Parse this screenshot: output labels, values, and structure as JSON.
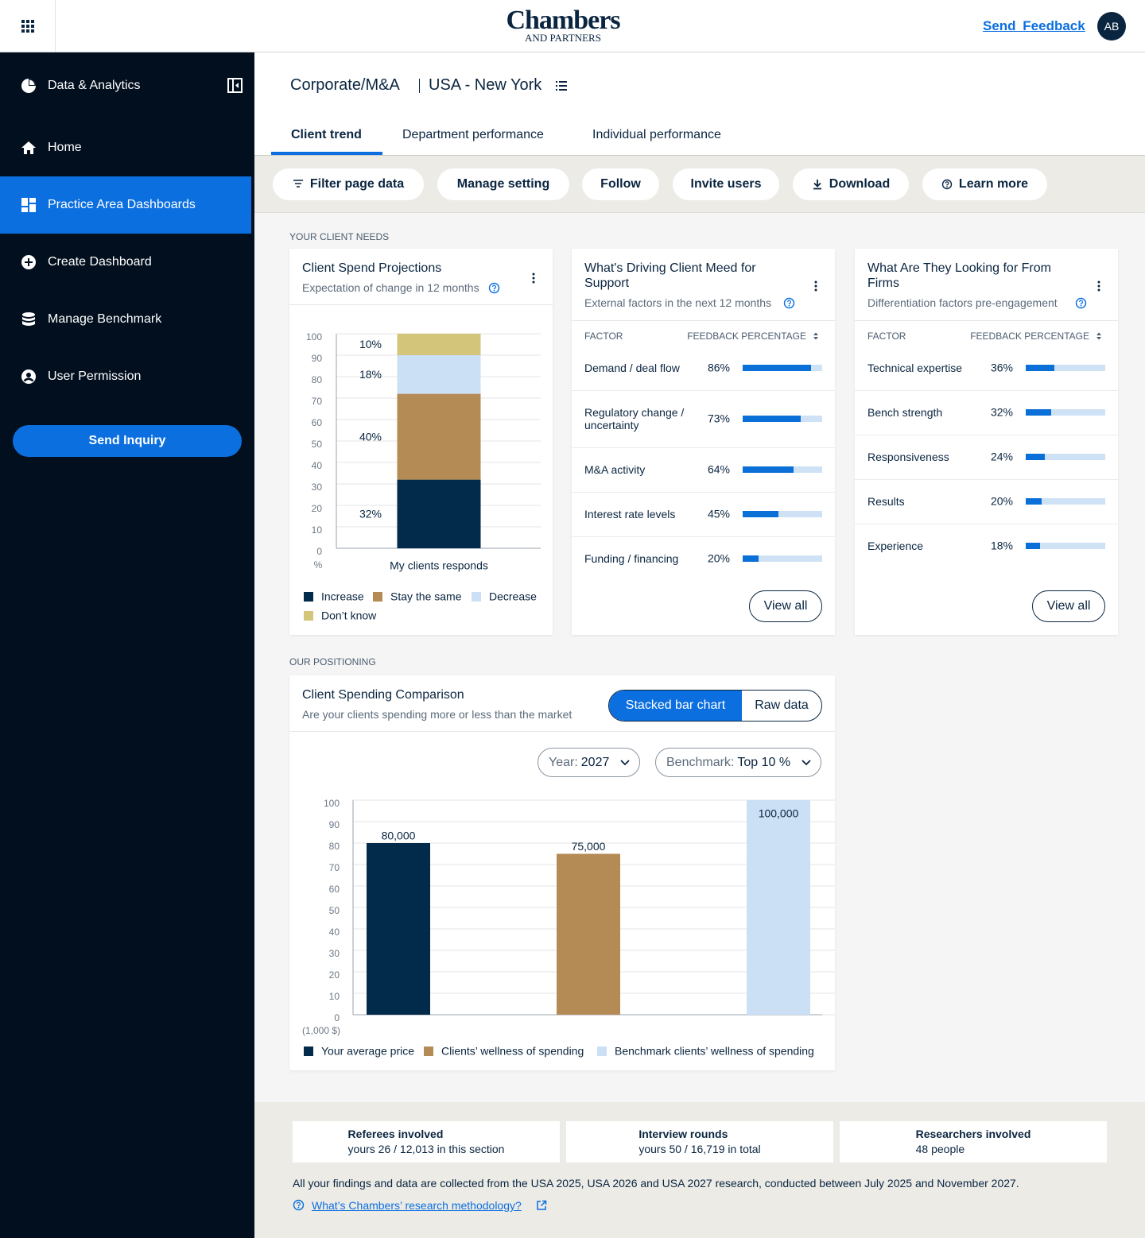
{
  "header": {
    "logo": "Chambers",
    "logo_sub": "AND PARTNERS",
    "feedback": "Send Feedback",
    "avatar": "AB"
  },
  "sidebar": {
    "items": [
      "Data & Analytics",
      "Home",
      "Practice Area Dashboards",
      "Create Dashboard",
      "Manage Benchmark",
      "User Permission"
    ],
    "button": "Send Inquiry"
  },
  "breadcrumb": [
    "Corporate/M&A",
    "USA - New York"
  ],
  "tabs": [
    "Client trend",
    "Department performance",
    "Individual performance"
  ],
  "toolbar": [
    "Filter page data",
    "Manage setting",
    "Follow",
    "Invite users",
    "Download",
    "Learn more"
  ],
  "sections": [
    "YOUR CLIENT NEEDS",
    "OUR POSITIONING"
  ],
  "chart_data": [
    {
      "type": "stacked_bar",
      "title": "Client Spend Projections",
      "subtitle": "Expectation of change in 12 months",
      "categories": [
        "My clients responds"
      ],
      "series": [
        {
          "name": "Increase",
          "color": "#022a4a",
          "values": [
            32
          ],
          "value_labels": [
            "32%"
          ]
        },
        {
          "name": "Stay the same",
          "color": "#b58b55",
          "values": [
            40
          ],
          "value_labels": [
            "40%"
          ]
        },
        {
          "name": "Decrease",
          "color": "#cbe0f5",
          "values": [
            18
          ],
          "value_labels": [
            "18%"
          ]
        },
        {
          "name": "Don’t know",
          "color": "#d3c67a",
          "values": [
            10
          ],
          "value_labels": [
            "10%"
          ]
        }
      ],
      "ylim": [
        0,
        100
      ],
      "yticks": [
        0,
        10,
        20,
        30,
        40,
        50,
        60,
        70,
        80,
        90,
        100
      ],
      "y_unit": "%",
      "grid": true
    },
    {
      "type": "bar",
      "title": "Client Spending Comparison",
      "subtitle": "Are your clients spending more or less than the market",
      "view_options": [
        "Stacked bar chart",
        "Raw data"
      ],
      "filters": [
        {
          "label": "Year:",
          "value": "2027"
        },
        {
          "label": "Benchmark:",
          "value": "Top 10 %"
        }
      ],
      "series": [
        {
          "name": "Your average price",
          "color": "#022a4a",
          "values": [
            80
          ],
          "value_labels": [
            "80,000"
          ]
        },
        {
          "name": "Clients’ wellness of spending",
          "color": "#b58b55",
          "values": [
            75
          ],
          "value_labels": [
            "75,000"
          ]
        },
        {
          "name": "Benchmark clients’ wellness of spending",
          "color": "#cbe0f5",
          "values": [
            100
          ],
          "value_labels": [
            "100,000"
          ]
        }
      ],
      "ylim": [
        0,
        100
      ],
      "yticks": [
        0,
        10,
        20,
        30,
        40,
        50,
        60,
        70,
        80,
        90,
        100
      ],
      "y_unit": "(1,000 $)",
      "grid": true
    }
  ],
  "cards": [
    {
      "title": "What's Driving Client Meed for Support",
      "subtitle": "External factors in the next 12 months",
      "columns": [
        "FACTOR",
        "FEEDBACK PERCENTAGE"
      ],
      "factors": [
        "Demand / deal flow",
        "Regulatory change / uncertainty",
        "M&A activity",
        "Interest rate levels",
        "Funding / financing"
      ],
      "values": [
        86,
        73,
        64,
        45,
        20
      ],
      "value_labels": [
        "86%",
        "73%",
        "64%",
        "45%",
        "20%"
      ],
      "xlim": [
        0,
        100
      ],
      "button": "View all"
    },
    {
      "title": "What Are They Looking for From Firms",
      "subtitle": "Differentiation factors pre-engagement",
      "columns": [
        "FACTOR",
        "FEEDBACK PERCENTAGE"
      ],
      "factors": [
        "Technical expertise",
        "Bench strength",
        "Responsiveness",
        "Results",
        "Experience"
      ],
      "values": [
        36,
        32,
        24,
        20,
        18
      ],
      "value_labels": [
        "36%",
        "32%",
        "24%",
        "20%",
        "18%"
      ],
      "xlim": [
        0,
        100
      ],
      "button": "View all"
    }
  ],
  "footer": {
    "stats": [
      {
        "title": "Referees involved",
        "text": "yours 26 / 12,013 in this section"
      },
      {
        "title": "Interview rounds",
        "text": "yours 50 / 16,719 in total"
      },
      {
        "title": "Researchers involved",
        "text": "48 people"
      }
    ],
    "note": "All your findings and data are collected from the USA 2025, USA 2026 and USA 2027 research, conducted between July 2025 and November 2027.",
    "link": "What’s Chambers’ research methodology?"
  }
}
